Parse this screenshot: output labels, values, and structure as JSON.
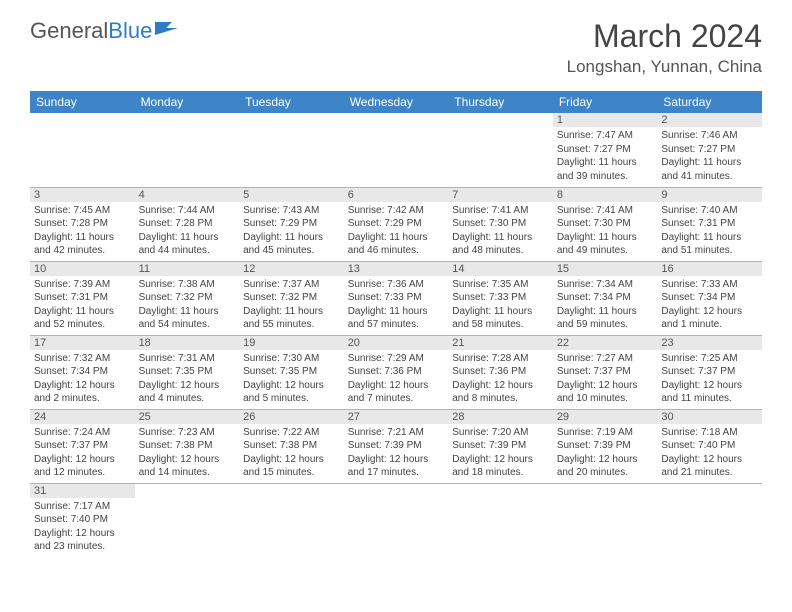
{
  "logo": {
    "word1": "General",
    "word2": "Blue"
  },
  "title": "March 2024",
  "subtitle": "Longshan, Yunnan, China",
  "colors": {
    "header_bg": "#3d85c6",
    "daynum_bg": "#e8e8e8",
    "border": "#9bb8d3",
    "text": "#444444",
    "logo_blue": "#2e7cc4"
  },
  "day_headers": [
    "Sunday",
    "Monday",
    "Tuesday",
    "Wednesday",
    "Thursday",
    "Friday",
    "Saturday"
  ],
  "weeks": [
    [
      null,
      null,
      null,
      null,
      null,
      {
        "n": "1",
        "sr": "Sunrise: 7:47 AM",
        "ss": "Sunset: 7:27 PM",
        "dl": "Daylight: 11 hours and 39 minutes."
      },
      {
        "n": "2",
        "sr": "Sunrise: 7:46 AM",
        "ss": "Sunset: 7:27 PM",
        "dl": "Daylight: 11 hours and 41 minutes."
      }
    ],
    [
      {
        "n": "3",
        "sr": "Sunrise: 7:45 AM",
        "ss": "Sunset: 7:28 PM",
        "dl": "Daylight: 11 hours and 42 minutes."
      },
      {
        "n": "4",
        "sr": "Sunrise: 7:44 AM",
        "ss": "Sunset: 7:28 PM",
        "dl": "Daylight: 11 hours and 44 minutes."
      },
      {
        "n": "5",
        "sr": "Sunrise: 7:43 AM",
        "ss": "Sunset: 7:29 PM",
        "dl": "Daylight: 11 hours and 45 minutes."
      },
      {
        "n": "6",
        "sr": "Sunrise: 7:42 AM",
        "ss": "Sunset: 7:29 PM",
        "dl": "Daylight: 11 hours and 46 minutes."
      },
      {
        "n": "7",
        "sr": "Sunrise: 7:41 AM",
        "ss": "Sunset: 7:30 PM",
        "dl": "Daylight: 11 hours and 48 minutes."
      },
      {
        "n": "8",
        "sr": "Sunrise: 7:41 AM",
        "ss": "Sunset: 7:30 PM",
        "dl": "Daylight: 11 hours and 49 minutes."
      },
      {
        "n": "9",
        "sr": "Sunrise: 7:40 AM",
        "ss": "Sunset: 7:31 PM",
        "dl": "Daylight: 11 hours and 51 minutes."
      }
    ],
    [
      {
        "n": "10",
        "sr": "Sunrise: 7:39 AM",
        "ss": "Sunset: 7:31 PM",
        "dl": "Daylight: 11 hours and 52 minutes."
      },
      {
        "n": "11",
        "sr": "Sunrise: 7:38 AM",
        "ss": "Sunset: 7:32 PM",
        "dl": "Daylight: 11 hours and 54 minutes."
      },
      {
        "n": "12",
        "sr": "Sunrise: 7:37 AM",
        "ss": "Sunset: 7:32 PM",
        "dl": "Daylight: 11 hours and 55 minutes."
      },
      {
        "n": "13",
        "sr": "Sunrise: 7:36 AM",
        "ss": "Sunset: 7:33 PM",
        "dl": "Daylight: 11 hours and 57 minutes."
      },
      {
        "n": "14",
        "sr": "Sunrise: 7:35 AM",
        "ss": "Sunset: 7:33 PM",
        "dl": "Daylight: 11 hours and 58 minutes."
      },
      {
        "n": "15",
        "sr": "Sunrise: 7:34 AM",
        "ss": "Sunset: 7:34 PM",
        "dl": "Daylight: 11 hours and 59 minutes."
      },
      {
        "n": "16",
        "sr": "Sunrise: 7:33 AM",
        "ss": "Sunset: 7:34 PM",
        "dl": "Daylight: 12 hours and 1 minute."
      }
    ],
    [
      {
        "n": "17",
        "sr": "Sunrise: 7:32 AM",
        "ss": "Sunset: 7:34 PM",
        "dl": "Daylight: 12 hours and 2 minutes."
      },
      {
        "n": "18",
        "sr": "Sunrise: 7:31 AM",
        "ss": "Sunset: 7:35 PM",
        "dl": "Daylight: 12 hours and 4 minutes."
      },
      {
        "n": "19",
        "sr": "Sunrise: 7:30 AM",
        "ss": "Sunset: 7:35 PM",
        "dl": "Daylight: 12 hours and 5 minutes."
      },
      {
        "n": "20",
        "sr": "Sunrise: 7:29 AM",
        "ss": "Sunset: 7:36 PM",
        "dl": "Daylight: 12 hours and 7 minutes."
      },
      {
        "n": "21",
        "sr": "Sunrise: 7:28 AM",
        "ss": "Sunset: 7:36 PM",
        "dl": "Daylight: 12 hours and 8 minutes."
      },
      {
        "n": "22",
        "sr": "Sunrise: 7:27 AM",
        "ss": "Sunset: 7:37 PM",
        "dl": "Daylight: 12 hours and 10 minutes."
      },
      {
        "n": "23",
        "sr": "Sunrise: 7:25 AM",
        "ss": "Sunset: 7:37 PM",
        "dl": "Daylight: 12 hours and 11 minutes."
      }
    ],
    [
      {
        "n": "24",
        "sr": "Sunrise: 7:24 AM",
        "ss": "Sunset: 7:37 PM",
        "dl": "Daylight: 12 hours and 12 minutes."
      },
      {
        "n": "25",
        "sr": "Sunrise: 7:23 AM",
        "ss": "Sunset: 7:38 PM",
        "dl": "Daylight: 12 hours and 14 minutes."
      },
      {
        "n": "26",
        "sr": "Sunrise: 7:22 AM",
        "ss": "Sunset: 7:38 PM",
        "dl": "Daylight: 12 hours and 15 minutes."
      },
      {
        "n": "27",
        "sr": "Sunrise: 7:21 AM",
        "ss": "Sunset: 7:39 PM",
        "dl": "Daylight: 12 hours and 17 minutes."
      },
      {
        "n": "28",
        "sr": "Sunrise: 7:20 AM",
        "ss": "Sunset: 7:39 PM",
        "dl": "Daylight: 12 hours and 18 minutes."
      },
      {
        "n": "29",
        "sr": "Sunrise: 7:19 AM",
        "ss": "Sunset: 7:39 PM",
        "dl": "Daylight: 12 hours and 20 minutes."
      },
      {
        "n": "30",
        "sr": "Sunrise: 7:18 AM",
        "ss": "Sunset: 7:40 PM",
        "dl": "Daylight: 12 hours and 21 minutes."
      }
    ],
    [
      {
        "n": "31",
        "sr": "Sunrise: 7:17 AM",
        "ss": "Sunset: 7:40 PM",
        "dl": "Daylight: 12 hours and 23 minutes."
      },
      null,
      null,
      null,
      null,
      null,
      null
    ]
  ]
}
